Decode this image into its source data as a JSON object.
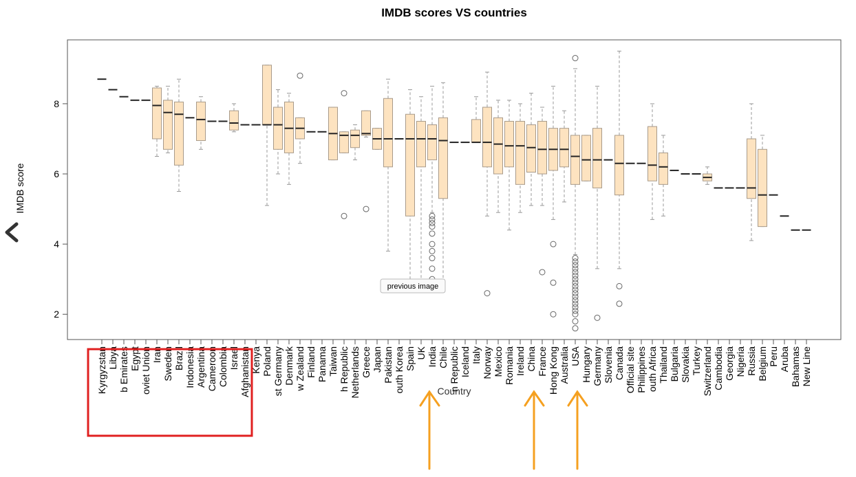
{
  "chart_data": {
    "type": "boxplot",
    "title": "IMDB scores VS countries",
    "y_label": "IMDB score",
    "x_label": "Country",
    "tooltip": "previous image",
    "categories": [
      "Kyrgyzstan",
      "Libya",
      "b Emirates",
      "Egypt",
      "oviet Union",
      "Iran",
      "Sweden",
      "Brazil",
      "Indonesia",
      "Argentina",
      "Cameroon",
      "Colombia",
      "Israel",
      "Afghanistan",
      "Kenya",
      "Poland",
      "st Germany",
      "Denmark",
      "w Zealand",
      "Finland",
      "Panama",
      "Taiwan",
      "h Republic",
      "Netherlands",
      "Greece",
      "Japan",
      "Pakistan",
      "outh Korea",
      "Spain",
      "UK",
      "India",
      "Chile",
      "n Republic",
      "Iceland",
      "Italy",
      "Norway",
      "Mexico",
      "Romania",
      "Ireland",
      "China",
      "France",
      "Hong Kong",
      "Australia",
      "USA",
      "Hungary",
      "Germany",
      "Slovenia",
      "Canada",
      "Official site",
      "Philippines",
      "outh Africa",
      "Thailand",
      "Bulgaria",
      "Slovakia",
      "Turkey",
      "Switzerland",
      "Cambodia",
      "Georgia",
      "Nigeria",
      "Russia",
      "Belgium",
      "Peru",
      "Aruba",
      "Bahamas",
      "New Line"
    ],
    "stats": [
      [
        8.7,
        8.7,
        8.7,
        8.7,
        8.7
      ],
      [
        8.4,
        8.4,
        8.4,
        8.4,
        8.4
      ],
      [
        8.2,
        8.2,
        8.2,
        8.2,
        8.2
      ],
      [
        8.1,
        8.1,
        8.1,
        8.1,
        8.1
      ],
      [
        8.1,
        8.1,
        8.1,
        8.1,
        8.1
      ],
      [
        6.5,
        7.0,
        7.95,
        8.45,
        8.5
      ],
      [
        6.6,
        6.7,
        7.75,
        8.1,
        8.5
      ],
      [
        5.5,
        6.25,
        7.7,
        8.05,
        8.7
      ],
      [
        7.6,
        7.6,
        7.6,
        7.6,
        7.6
      ],
      [
        6.7,
        6.95,
        7.55,
        8.05,
        8.2
      ],
      [
        7.5,
        7.5,
        7.5,
        7.5,
        7.5
      ],
      [
        7.5,
        7.5,
        7.5,
        7.5,
        7.5
      ],
      [
        7.2,
        7.25,
        7.45,
        7.8,
        8.0
      ],
      [
        7.4,
        7.4,
        7.4,
        7.4,
        7.4
      ],
      [
        7.4,
        7.4,
        7.4,
        7.4,
        7.4
      ],
      [
        5.1,
        7.4,
        7.4,
        9.1,
        9.1
      ],
      [
        6.0,
        6.7,
        7.4,
        7.9,
        8.4
      ],
      [
        5.7,
        6.6,
        7.3,
        8.05,
        8.3
      ],
      [
        6.3,
        7.0,
        7.3,
        7.6,
        7.6
      ],
      [
        7.2,
        7.2,
        7.2,
        7.2,
        7.2
      ],
      [
        7.2,
        7.2,
        7.2,
        7.2,
        7.2
      ],
      [
        6.4,
        6.4,
        7.15,
        7.9,
        7.9
      ],
      [
        6.6,
        6.6,
        7.1,
        7.2,
        7.2
      ],
      [
        6.4,
        6.75,
        7.1,
        7.25,
        7.4
      ],
      [
        7.05,
        7.1,
        7.15,
        7.8,
        7.8
      ],
      [
        6.7,
        6.7,
        7.0,
        7.3,
        7.3
      ],
      [
        3.8,
        6.2,
        7.0,
        8.15,
        8.7
      ],
      [
        7.0,
        7.0,
        7.0,
        7.0,
        7.0
      ],
      [
        3.0,
        4.8,
        7.0,
        7.7,
        8.4
      ],
      [
        2.9,
        6.2,
        7.0,
        7.5,
        8.2
      ],
      [
        4.9,
        6.4,
        7.0,
        7.4,
        8.5
      ],
      [
        2.9,
        5.3,
        6.95,
        7.6,
        8.6
      ],
      [
        6.9,
        6.9,
        6.9,
        6.9,
        6.9
      ],
      [
        6.9,
        6.9,
        6.9,
        6.9,
        6.9
      ],
      [
        6.9,
        6.9,
        6.9,
        7.55,
        8.2
      ],
      [
        4.8,
        6.2,
        6.9,
        7.9,
        8.9
      ],
      [
        4.9,
        6.0,
        6.85,
        7.6,
        8.1
      ],
      [
        4.4,
        6.2,
        6.8,
        7.5,
        8.1
      ],
      [
        4.9,
        5.7,
        6.8,
        7.5,
        8.0
      ],
      [
        5.1,
        6.05,
        6.75,
        7.4,
        8.3
      ],
      [
        5.1,
        6.0,
        6.7,
        7.5,
        7.9
      ],
      [
        4.7,
        6.1,
        6.7,
        7.3,
        8.5
      ],
      [
        5.2,
        6.2,
        6.7,
        7.3,
        7.8
      ],
      [
        3.7,
        5.7,
        6.5,
        7.1,
        9.0
      ],
      [
        5.8,
        5.8,
        6.4,
        7.1,
        7.1
      ],
      [
        3.3,
        5.6,
        6.4,
        7.3,
        8.5
      ],
      [
        6.4,
        6.4,
        6.4,
        6.4,
        6.4
      ],
      [
        3.3,
        5.4,
        6.3,
        7.1,
        9.5
      ],
      [
        6.3,
        6.3,
        6.3,
        6.3,
        6.3
      ],
      [
        6.3,
        6.3,
        6.3,
        6.3,
        6.3
      ],
      [
        4.7,
        5.8,
        6.25,
        7.35,
        8.0
      ],
      [
        4.8,
        5.7,
        6.2,
        6.6,
        7.1
      ],
      [
        6.1,
        6.1,
        6.1,
        6.1,
        6.1
      ],
      [
        6.0,
        6.0,
        6.0,
        6.0,
        6.0
      ],
      [
        6.0,
        6.0,
        6.0,
        6.0,
        6.0
      ],
      [
        5.7,
        5.8,
        5.9,
        6.0,
        6.2
      ],
      [
        5.6,
        5.6,
        5.6,
        5.6,
        5.6
      ],
      [
        5.6,
        5.6,
        5.6,
        5.6,
        5.6
      ],
      [
        5.6,
        5.6,
        5.6,
        5.6,
        5.6
      ],
      [
        4.1,
        5.3,
        5.6,
        7.0,
        8.0
      ],
      [
        4.5,
        4.5,
        5.4,
        6.7,
        7.1
      ],
      [
        5.4,
        5.4,
        5.4,
        5.4,
        5.4
      ],
      [
        4.8,
        4.8,
        4.8,
        4.8,
        4.8
      ],
      [
        4.4,
        4.4,
        4.4,
        4.4,
        4.4
      ],
      [
        4.4,
        4.4,
        4.4,
        4.4,
        4.4
      ]
    ],
    "outliers": [
      [],
      [],
      [],
      [],
      [],
      [],
      [],
      [],
      [],
      [],
      [],
      [],
      [],
      [],
      [],
      [],
      [],
      [],
      [
        8.8
      ],
      [],
      [],
      [],
      [
        8.3,
        4.8
      ],
      [],
      [
        5.0
      ],
      [],
      [],
      [],
      [],
      [],
      [
        4.8,
        4.7,
        4.6,
        4.5,
        4.3,
        4.0,
        3.8,
        3.6,
        3.3,
        3.0
      ],
      [],
      [],
      [],
      [],
      [
        2.6
      ],
      [],
      [],
      [],
      [],
      [
        3.2
      ],
      [
        4.0,
        2.9,
        2.0
      ],
      [],
      [
        9.3,
        3.6,
        3.5,
        3.4,
        3.3,
        3.2,
        3.1,
        3.0,
        2.9,
        2.8,
        2.7,
        2.6,
        2.5,
        2.4,
        2.3,
        2.2,
        2.1,
        2.0,
        1.8,
        1.6
      ],
      [],
      [
        1.9
      ],
      [],
      [
        2.8,
        2.3
      ],
      [],
      [],
      [],
      [],
      [],
      [],
      [],
      [],
      [],
      [],
      [],
      [],
      [],
      [],
      [],
      [],
      []
    ],
    "color": "#fde3c0",
    "ylim": [
      1.28,
      9.82
    ],
    "yticks": [
      2,
      4,
      6,
      8
    ]
  }
}
